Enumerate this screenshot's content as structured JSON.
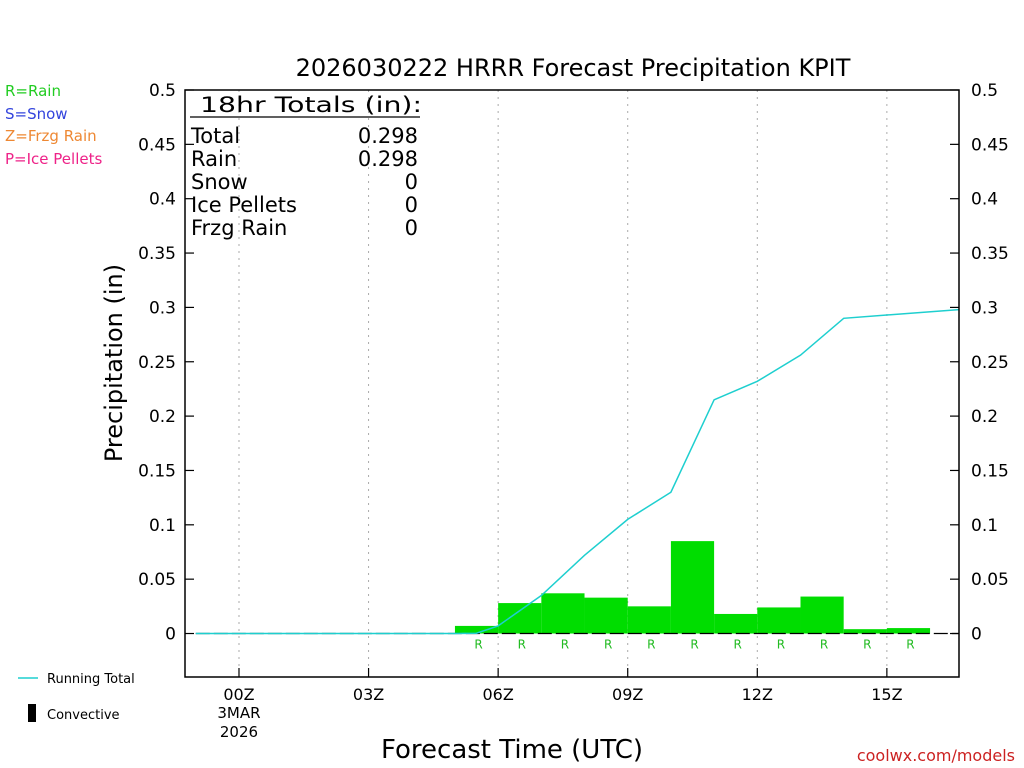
{
  "chart_data": {
    "type": "bar",
    "title": "2026030222 HRRR Forecast Precipitation KPIT",
    "xlabel": "Forecast Time (UTC)",
    "ylabel": "Precipitation (in)",
    "ylim": [
      -0.04,
      0.5
    ],
    "xlim": [
      -1.25,
      16.67
    ],
    "y_ticks": [
      "0",
      "0.05",
      "0.1",
      "0.15",
      "0.2",
      "0.25",
      "0.3",
      "0.35",
      "0.4",
      "0.45",
      "0.5"
    ],
    "x_ticks": [
      {
        "hour": 0,
        "label": "00Z",
        "date": "3MAR",
        "year": "2026"
      },
      {
        "hour": 3,
        "label": "03Z"
      },
      {
        "hour": 6,
        "label": "06Z"
      },
      {
        "hour": 9,
        "label": "09Z"
      },
      {
        "hour": 12,
        "label": "12Z"
      },
      {
        "hour": 15,
        "label": "15Z"
      }
    ],
    "legend_left": [
      {
        "text": "R=Rain",
        "color": "#22cc22"
      },
      {
        "text": "S=Snow",
        "color": "#3344dd"
      },
      {
        "text": "Z=Frzg Rain",
        "color": "#ee8833"
      },
      {
        "text": "P=Ice Pellets",
        "color": "#ee2288"
      }
    ],
    "legend_bottom": [
      {
        "text": "Running Total",
        "kind": "line",
        "color": "#1ecfcf"
      },
      {
        "text": "Convective",
        "kind": "bar",
        "color": "#000000"
      }
    ],
    "totals_box": {
      "header": "18hr Totals (in):",
      "rows": [
        {
          "label": "Total",
          "value": "0.298"
        },
        {
          "label": "Rain",
          "value": "0.298"
        },
        {
          "label": "Snow",
          "value": "0"
        },
        {
          "label": "Ice Pellets",
          "value": "0"
        },
        {
          "label": "Frzg Rain",
          "value": "0"
        }
      ]
    },
    "hourly_bars": {
      "color": "#00dd00",
      "series_name": "Rain",
      "points": [
        {
          "hour": 6,
          "value": 0.007,
          "type": "R"
        },
        {
          "hour": 7,
          "value": 0.028,
          "type": "R"
        },
        {
          "hour": 8,
          "value": 0.037,
          "type": "R"
        },
        {
          "hour": 9,
          "value": 0.033,
          "type": "R"
        },
        {
          "hour": 10,
          "value": 0.025,
          "type": "R"
        },
        {
          "hour": 11,
          "value": 0.085,
          "type": "R"
        },
        {
          "hour": 12,
          "value": 0.018,
          "type": "R"
        },
        {
          "hour": 13,
          "value": 0.024,
          "type": "R"
        },
        {
          "hour": 14,
          "value": 0.034,
          "type": "R"
        },
        {
          "hour": 15,
          "value": 0.004,
          "type": "R"
        },
        {
          "hour": 16,
          "value": 0.005,
          "type": "R"
        }
      ]
    },
    "running_total": {
      "name": "Running Total",
      "color": "#1ecfcf",
      "x": [
        -1,
        0,
        1,
        2,
        3,
        4,
        5,
        5.5,
        6,
        7,
        8,
        9,
        10,
        11,
        12,
        13,
        14,
        15,
        16.67
      ],
      "y": [
        0,
        0,
        0,
        0,
        0,
        0,
        0,
        0.0003,
        0.007,
        0.035,
        0.072,
        0.105,
        0.13,
        0.215,
        0.232,
        0.256,
        0.29,
        0.293,
        0.298
      ]
    },
    "grid": "vertical-dotted",
    "right_axis": true
  },
  "watermark": "coolwx.com/models"
}
